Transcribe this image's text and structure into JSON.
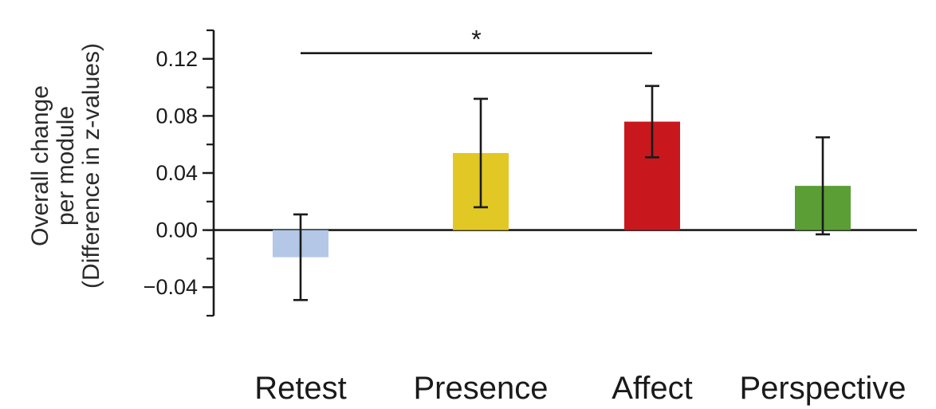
{
  "chart_data": {
    "type": "bar",
    "ylabel": [
      "Overall change",
      "per module",
      "(Difference in z-values)"
    ],
    "categories": [
      "Retest",
      "Presence",
      "Affect",
      "Perspective"
    ],
    "values": [
      -0.019,
      0.054,
      0.076,
      0.031
    ],
    "errors": [
      0.03,
      0.038,
      0.025,
      0.034
    ],
    "colors": [
      "#b4c7e7",
      "#e2c824",
      "#c8181e",
      "#5b9e35"
    ],
    "ylim": [
      -0.06,
      0.14
    ],
    "yticks": [
      -0.04,
      0.0,
      0.04,
      0.08,
      0.12
    ],
    "ytick_labels": [
      "−0.04",
      "0.00",
      "0.04",
      "0.08",
      "0.12"
    ],
    "minor_tick_step": 0.02,
    "grid": false,
    "significance": {
      "from": "Retest",
      "to": "Affect",
      "y": 0.124,
      "label": "*"
    }
  }
}
